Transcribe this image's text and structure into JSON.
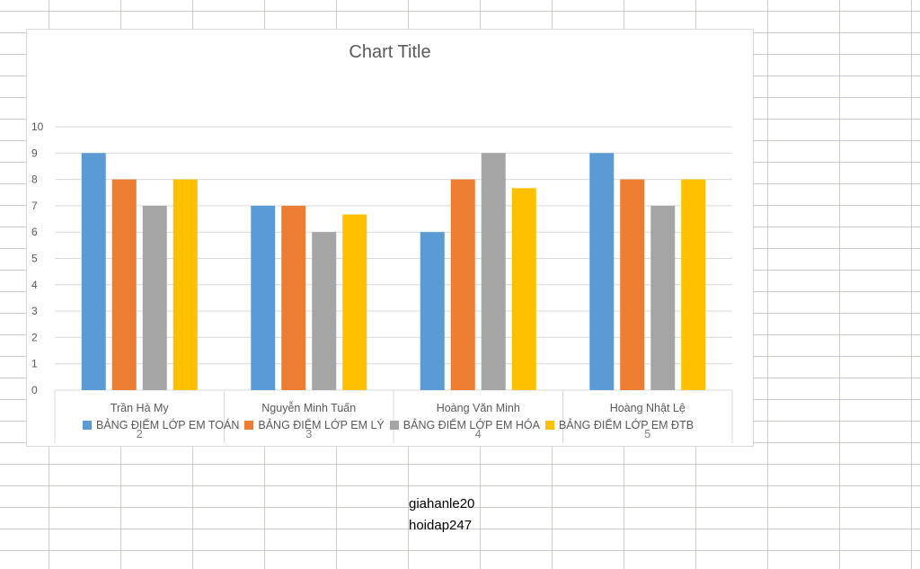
{
  "watermark": {
    "line1": "giahanle20",
    "line2": "hoidap247"
  },
  "colors": {
    "series": [
      "#5b9bd5",
      "#ed7d31",
      "#a5a5a5",
      "#ffc000"
    ],
    "gridline": "#d9d9d9",
    "text": "#595959"
  },
  "chart_data": {
    "type": "bar",
    "title": "Chart Title",
    "xlabel": "",
    "ylabel": "",
    "ylim": [
      0,
      10
    ],
    "yticks": [
      "0",
      "1",
      "2",
      "3",
      "4",
      "5",
      "6",
      "7",
      "8",
      "9",
      "10"
    ],
    "grid": true,
    "legend_position": "bottom",
    "categories": [
      "Trần Hà My",
      "Nguyễn Minh Tuấn",
      "Hoàng Văn Minh",
      "Hoàng Nhật Lệ"
    ],
    "category_sub_labels": [
      "2",
      "3",
      "4",
      "5"
    ],
    "series": [
      {
        "name": "BẢNG ĐIỂM LỚP EM TOÁN",
        "values": [
          9,
          7,
          6,
          9
        ]
      },
      {
        "name": "BẢNG ĐIỂM LỚP EM LÝ",
        "values": [
          8,
          7,
          8,
          8
        ]
      },
      {
        "name": "BẢNG ĐIỂM LỚP EM HÓA",
        "values": [
          7,
          6,
          9,
          7
        ]
      },
      {
        "name": "BẢNG ĐIỂM LỚP EM ĐTB",
        "values": [
          8,
          6.67,
          7.67,
          8
        ]
      }
    ]
  }
}
